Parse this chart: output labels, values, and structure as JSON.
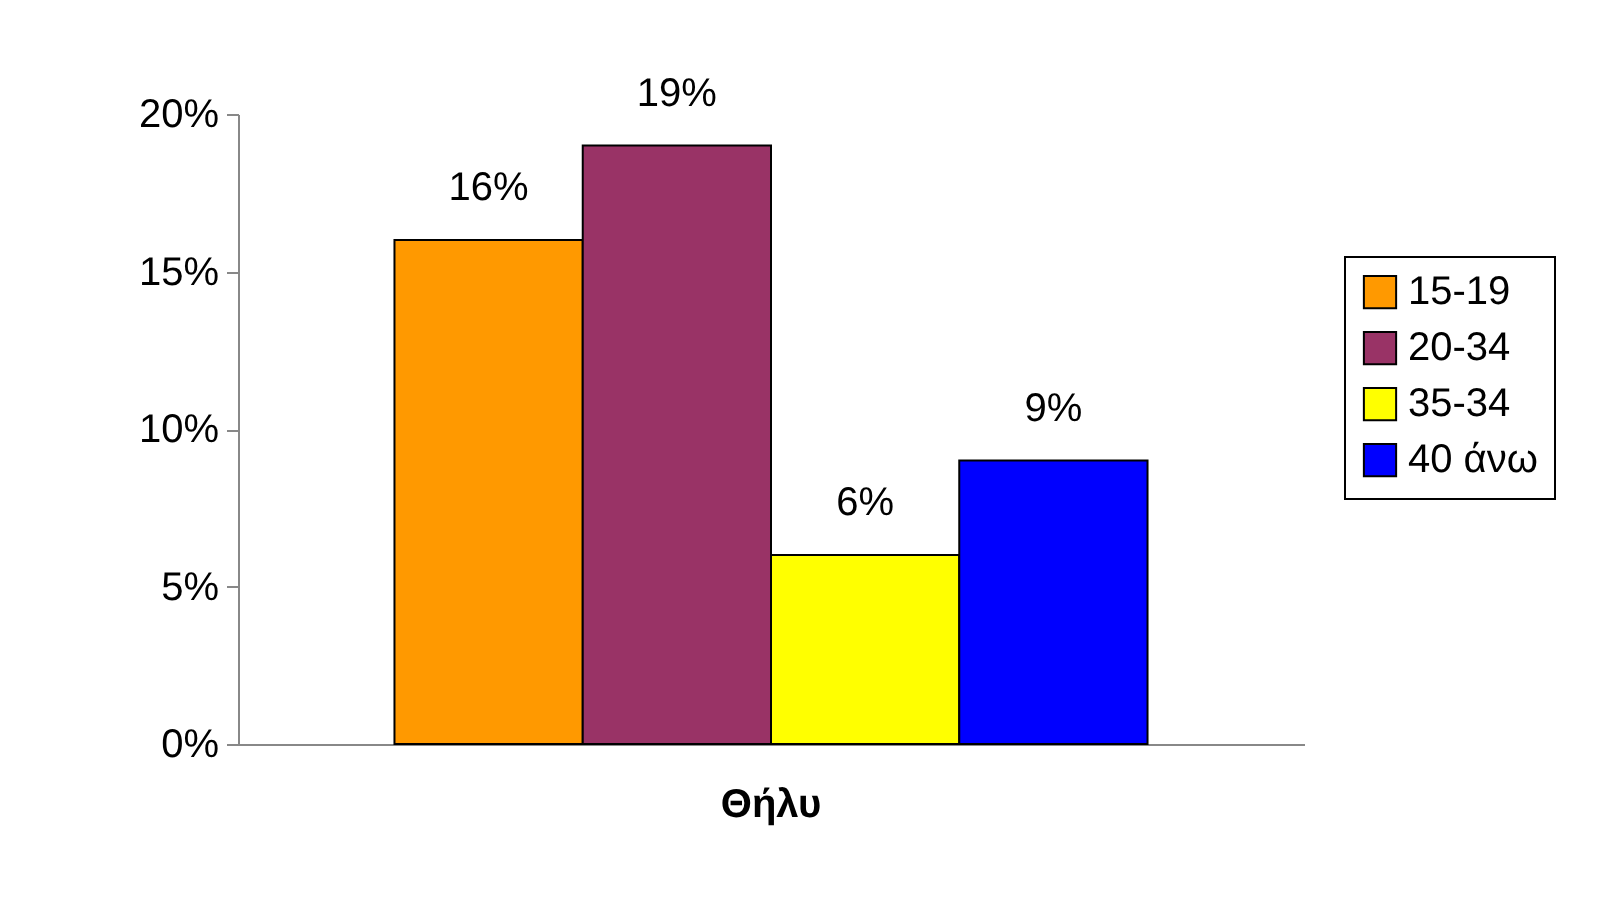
{
  "chart_data": {
    "type": "bar",
    "categories": [
      "Θήλυ"
    ],
    "series": [
      {
        "name": "15-19",
        "color": "#ff9900",
        "values": [
          16
        ],
        "value_labels": [
          "16%"
        ]
      },
      {
        "name": "20-34",
        "color": "#993366",
        "values": [
          19
        ],
        "value_labels": [
          "19%"
        ]
      },
      {
        "name": "35-34",
        "color": "#ffff00",
        "values": [
          6
        ],
        "value_labels": [
          "6%"
        ]
      },
      {
        "name": "40 άνω",
        "color": "#0000ff",
        "values": [
          9
        ],
        "value_labels": [
          "9%"
        ]
      }
    ],
    "ylim": [
      0,
      20
    ],
    "yticks": [
      {
        "value": 0,
        "label": "0%"
      },
      {
        "value": 5,
        "label": "5%"
      },
      {
        "value": 10,
        "label": "10%"
      },
      {
        "value": 15,
        "label": "15%"
      },
      {
        "value": 20,
        "label": "20%"
      }
    ],
    "legend": "right"
  }
}
